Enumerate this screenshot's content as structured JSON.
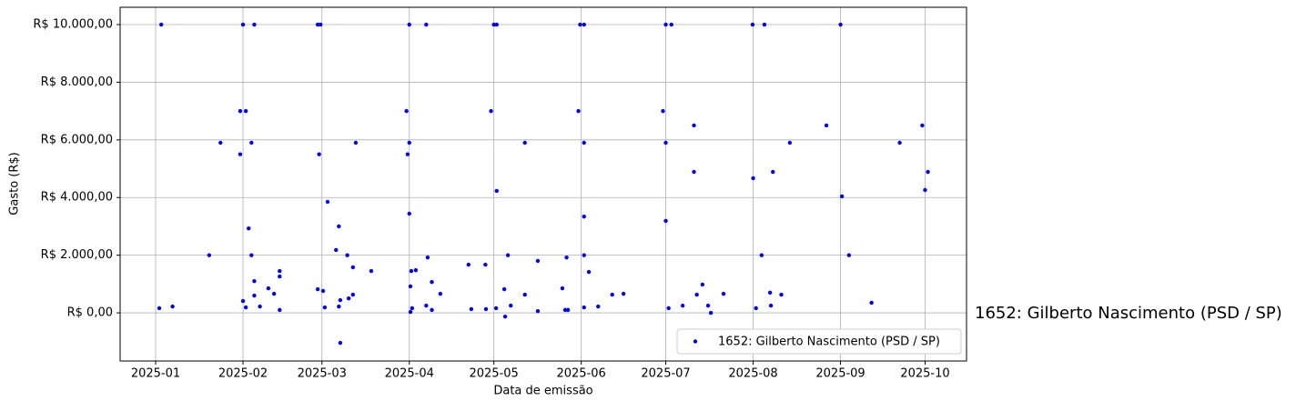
{
  "chart_data": {
    "type": "scatter",
    "x_label": "Data de emissão",
    "y_label": "Gasto (R$)",
    "annotation": "1652: Gilberto Nascimento (PSD / SP)",
    "grid": true,
    "legend": "lower right",
    "xlim": [
      -12.6,
      287.7
    ],
    "xticks": [
      {
        "value": 0,
        "label": "2025-01"
      },
      {
        "value": 31,
        "label": "2025-02"
      },
      {
        "value": 59,
        "label": "2025-03"
      },
      {
        "value": 90,
        "label": "2025-04"
      },
      {
        "value": 120,
        "label": "2025-05"
      },
      {
        "value": 151,
        "label": "2025-06"
      },
      {
        "value": 181,
        "label": "2025-07"
      },
      {
        "value": 212,
        "label": "2025-08"
      },
      {
        "value": 243,
        "label": "2025-09"
      },
      {
        "value": 273,
        "label": "2025-10"
      }
    ],
    "ylim": [
      -1670,
      10600
    ],
    "yticks": [
      {
        "value": 0,
        "label": "R$ 0,00"
      },
      {
        "value": 2000,
        "label": "R$ 2.000,00"
      },
      {
        "value": 4000,
        "label": "R$ 4.000,00"
      },
      {
        "value": 6000,
        "label": "R$ 6.000,00"
      },
      {
        "value": 8000,
        "label": "R$ 8.000,00"
      },
      {
        "value": 10000,
        "label": "R$ 10.000,00"
      }
    ],
    "series": [
      {
        "name": "1652: Gilberto Nascimento (PSD / SP)",
        "color": "#0000ff",
        "x": [
          1.3,
          2,
          6,
          19,
          23,
          30,
          30,
          31,
          31,
          32,
          32,
          33,
          34,
          34,
          35,
          35,
          35,
          37,
          40,
          42,
          44,
          44,
          44,
          57.5,
          58.5,
          58,
          57.5,
          59.4,
          60,
          61,
          64,
          65,
          65.5,
          65,
          65.5,
          68,
          68.5,
          70,
          70,
          71,
          76.5,
          89.4,
          89,
          90,
          90,
          90,
          90.4,
          90.4,
          91,
          90.7,
          92.3,
          96,
          96,
          96.5,
          98,
          98,
          101,
          111,
          112,
          117,
          117.2,
          119,
          120,
          121,
          121,
          120.8,
          123.7,
          124,
          125,
          126,
          131,
          131,
          135.6,
          135.6,
          144.3,
          145.3,
          146.3,
          145.8,
          150,
          150.6,
          152,
          152,
          152,
          152,
          152,
          153.7,
          157,
          162,
          166,
          180,
          181,
          181,
          181,
          182,
          183,
          187,
          191,
          191,
          192,
          194,
          196,
          197,
          201.5,
          211.8,
          212,
          213,
          215,
          216,
          218,
          218.3,
          219,
          222,
          225,
          238,
          243,
          243.5,
          246,
          254,
          264,
          272,
          273,
          274
        ],
        "values": [
          160,
          10000,
          220,
          2000,
          5900,
          7000,
          5500,
          10000,
          410,
          7000,
          190,
          2930,
          5900,
          2000,
          10000,
          1100,
          600,
          220,
          850,
          660,
          1450,
          1260,
          100,
          10000,
          10000,
          5500,
          820,
          760,
          190,
          3850,
          2180,
          3000,
          440,
          220,
          -1040,
          2000,
          500,
          1580,
          630,
          5900,
          1450,
          5500,
          7000,
          10000,
          3440,
          5900,
          920,
          30,
          160,
          1450,
          1480,
          10000,
          250,
          1920,
          1070,
          100,
          660,
          1670,
          130,
          1670,
          130,
          7000,
          10000,
          10000,
          4230,
          160,
          820,
          -130,
          2000,
          250,
          630,
          5900,
          1800,
          60,
          850,
          100,
          100,
          1920,
          7000,
          10000,
          10000,
          5900,
          3340,
          2000,
          190,
          1420,
          220,
          630,
          660,
          7000,
          10000,
          5900,
          3190,
          160,
          10000,
          250,
          6500,
          4890,
          630,
          980,
          250,
          0,
          660,
          10000,
          4670,
          160,
          2000,
          10000,
          700,
          250,
          4890,
          630,
          5900,
          6500,
          10000,
          4040,
          2000,
          350,
          5900,
          6500,
          4260,
          4890
        ]
      }
    ]
  }
}
